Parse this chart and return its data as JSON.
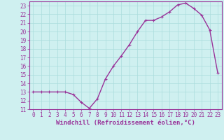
{
  "x": [
    0,
    1,
    2,
    3,
    4,
    5,
    6,
    7,
    8,
    9,
    10,
    11,
    12,
    13,
    14,
    15,
    16,
    17,
    18,
    19,
    20,
    21,
    22,
    23
  ],
  "y": [
    13,
    13,
    13,
    13,
    13,
    12.7,
    11.8,
    11.1,
    12.2,
    14.5,
    16.0,
    17.2,
    18.5,
    20.0,
    21.3,
    21.3,
    21.7,
    22.3,
    23.1,
    23.3,
    22.7,
    21.9,
    20.2,
    15.2
  ],
  "line_color": "#993399",
  "marker": "+",
  "marker_size": 3,
  "linewidth": 1.0,
  "xlabel": "Windchill (Refroidissement éolien,°C)",
  "xlabel_fontsize": 6.5,
  "bg_color": "#cff0f0",
  "grid_color": "#aadddd",
  "tick_color": "#993399",
  "xlim": [
    -0.5,
    23.5
  ],
  "ylim": [
    11,
    23.5
  ],
  "yticks": [
    11,
    12,
    13,
    14,
    15,
    16,
    17,
    18,
    19,
    20,
    21,
    22,
    23
  ],
  "xticks": [
    0,
    1,
    2,
    3,
    4,
    5,
    6,
    7,
    8,
    9,
    10,
    11,
    12,
    13,
    14,
    15,
    16,
    17,
    18,
    19,
    20,
    21,
    22,
    23
  ],
  "tick_fontsize": 5.5,
  "spine_color": "#993399"
}
